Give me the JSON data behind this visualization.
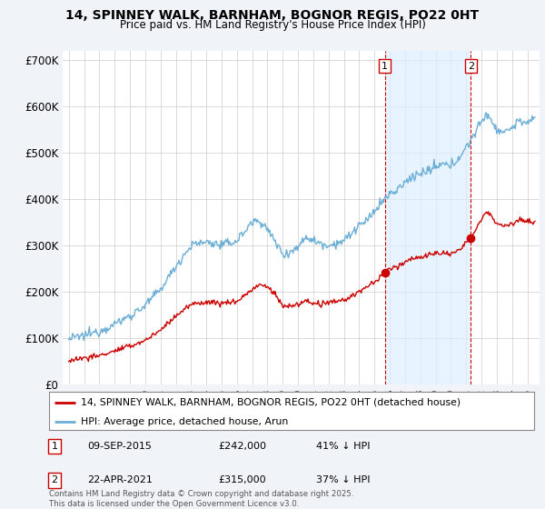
{
  "title": "14, SPINNEY WALK, BARNHAM, BOGNOR REGIS, PO22 0HT",
  "subtitle": "Price paid vs. HM Land Registry's House Price Index (HPI)",
  "hpi_label": "HPI: Average price, detached house, Arun",
  "house_label": "14, SPINNEY WALK, BARNHAM, BOGNOR REGIS, PO22 0HT (detached house)",
  "footnote": "Contains HM Land Registry data © Crown copyright and database right 2025.\nThis data is licensed under the Open Government Licence v3.0.",
  "annotation1": {
    "num": "1",
    "date": "09-SEP-2015",
    "price": "£242,000",
    "pct": "41% ↓ HPI"
  },
  "annotation2": {
    "num": "2",
    "date": "22-APR-2021",
    "price": "£315,000",
    "pct": "37% ↓ HPI"
  },
  "hpi_color": "#6baed6",
  "house_color": "#cc0000",
  "ann_box_color": "#cc0000",
  "bg_color": "#f0f4f8",
  "plot_bg": "#ffffff",
  "shaded_bg": "#ddeeff",
  "grid_color": "#cccccc",
  "ylim": [
    0,
    720000
  ],
  "yticks": [
    0,
    100000,
    200000,
    300000,
    400000,
    500000,
    600000,
    700000
  ],
  "ytick_labels": [
    "£0",
    "£100K",
    "£200K",
    "£300K",
    "£400K",
    "£500K",
    "£600K",
    "£700K"
  ],
  "ann1_x": 2015.68,
  "ann1_y_house": 242000,
  "ann2_x": 2021.3,
  "ann2_y_house": 315000,
  "xmin": 1994.6,
  "xmax": 2025.8
}
